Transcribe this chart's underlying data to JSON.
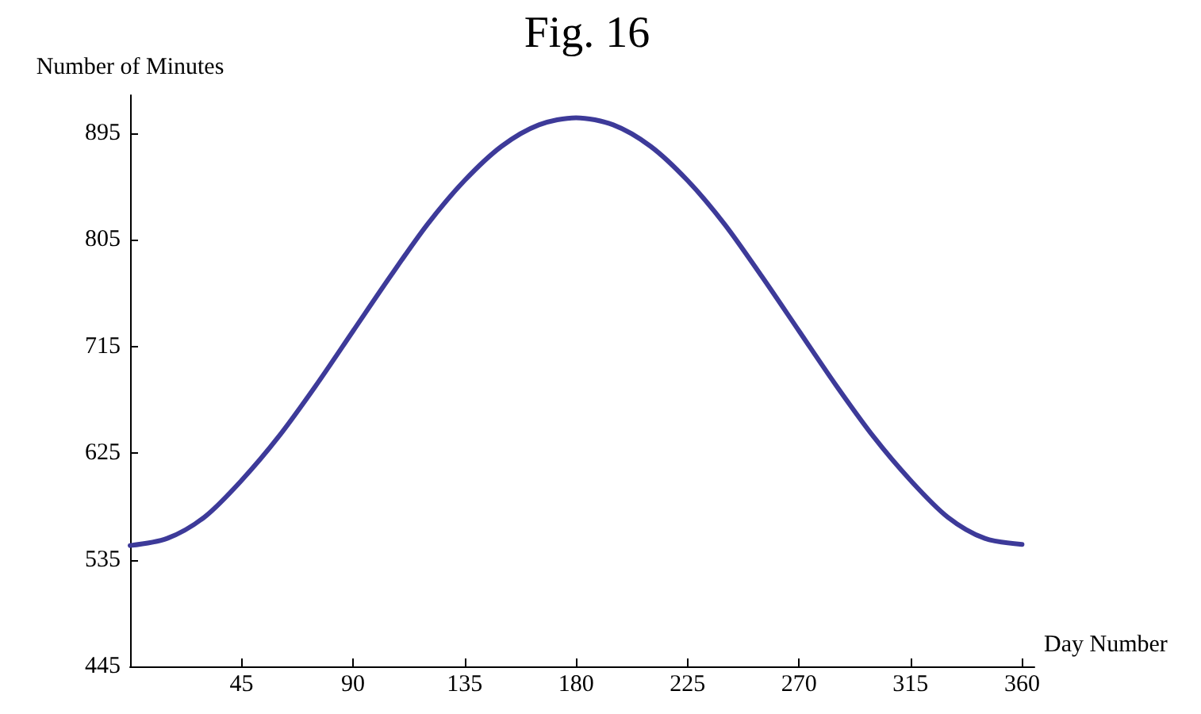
{
  "chart_data": {
    "type": "line",
    "title": "Fig. 16",
    "xlabel": "Day Number",
    "ylabel": "Number of Minutes",
    "x": [
      0,
      15,
      30,
      45,
      60,
      75,
      90,
      105,
      120,
      135,
      150,
      165,
      180,
      195,
      210,
      225,
      240,
      255,
      270,
      285,
      300,
      315,
      330,
      345,
      360
    ],
    "series": [
      {
        "color": "#3d3a99",
        "values": [
          547,
          553,
          571,
          602,
          639,
          682,
          728,
          774,
          818,
          855,
          884,
          902,
          908,
          902,
          884,
          855,
          818,
          774,
          728,
          682,
          639,
          602,
          571,
          553,
          548
        ]
      }
    ],
    "xlim": [
      0,
      365
    ],
    "xticks": [
      45,
      90,
      135,
      180,
      225,
      270,
      315,
      360
    ],
    "ylim": [
      445,
      927
    ],
    "yticks": [
      445,
      535,
      625,
      715,
      805,
      895
    ],
    "grid": false,
    "marker": "none",
    "line_style": "solid"
  }
}
